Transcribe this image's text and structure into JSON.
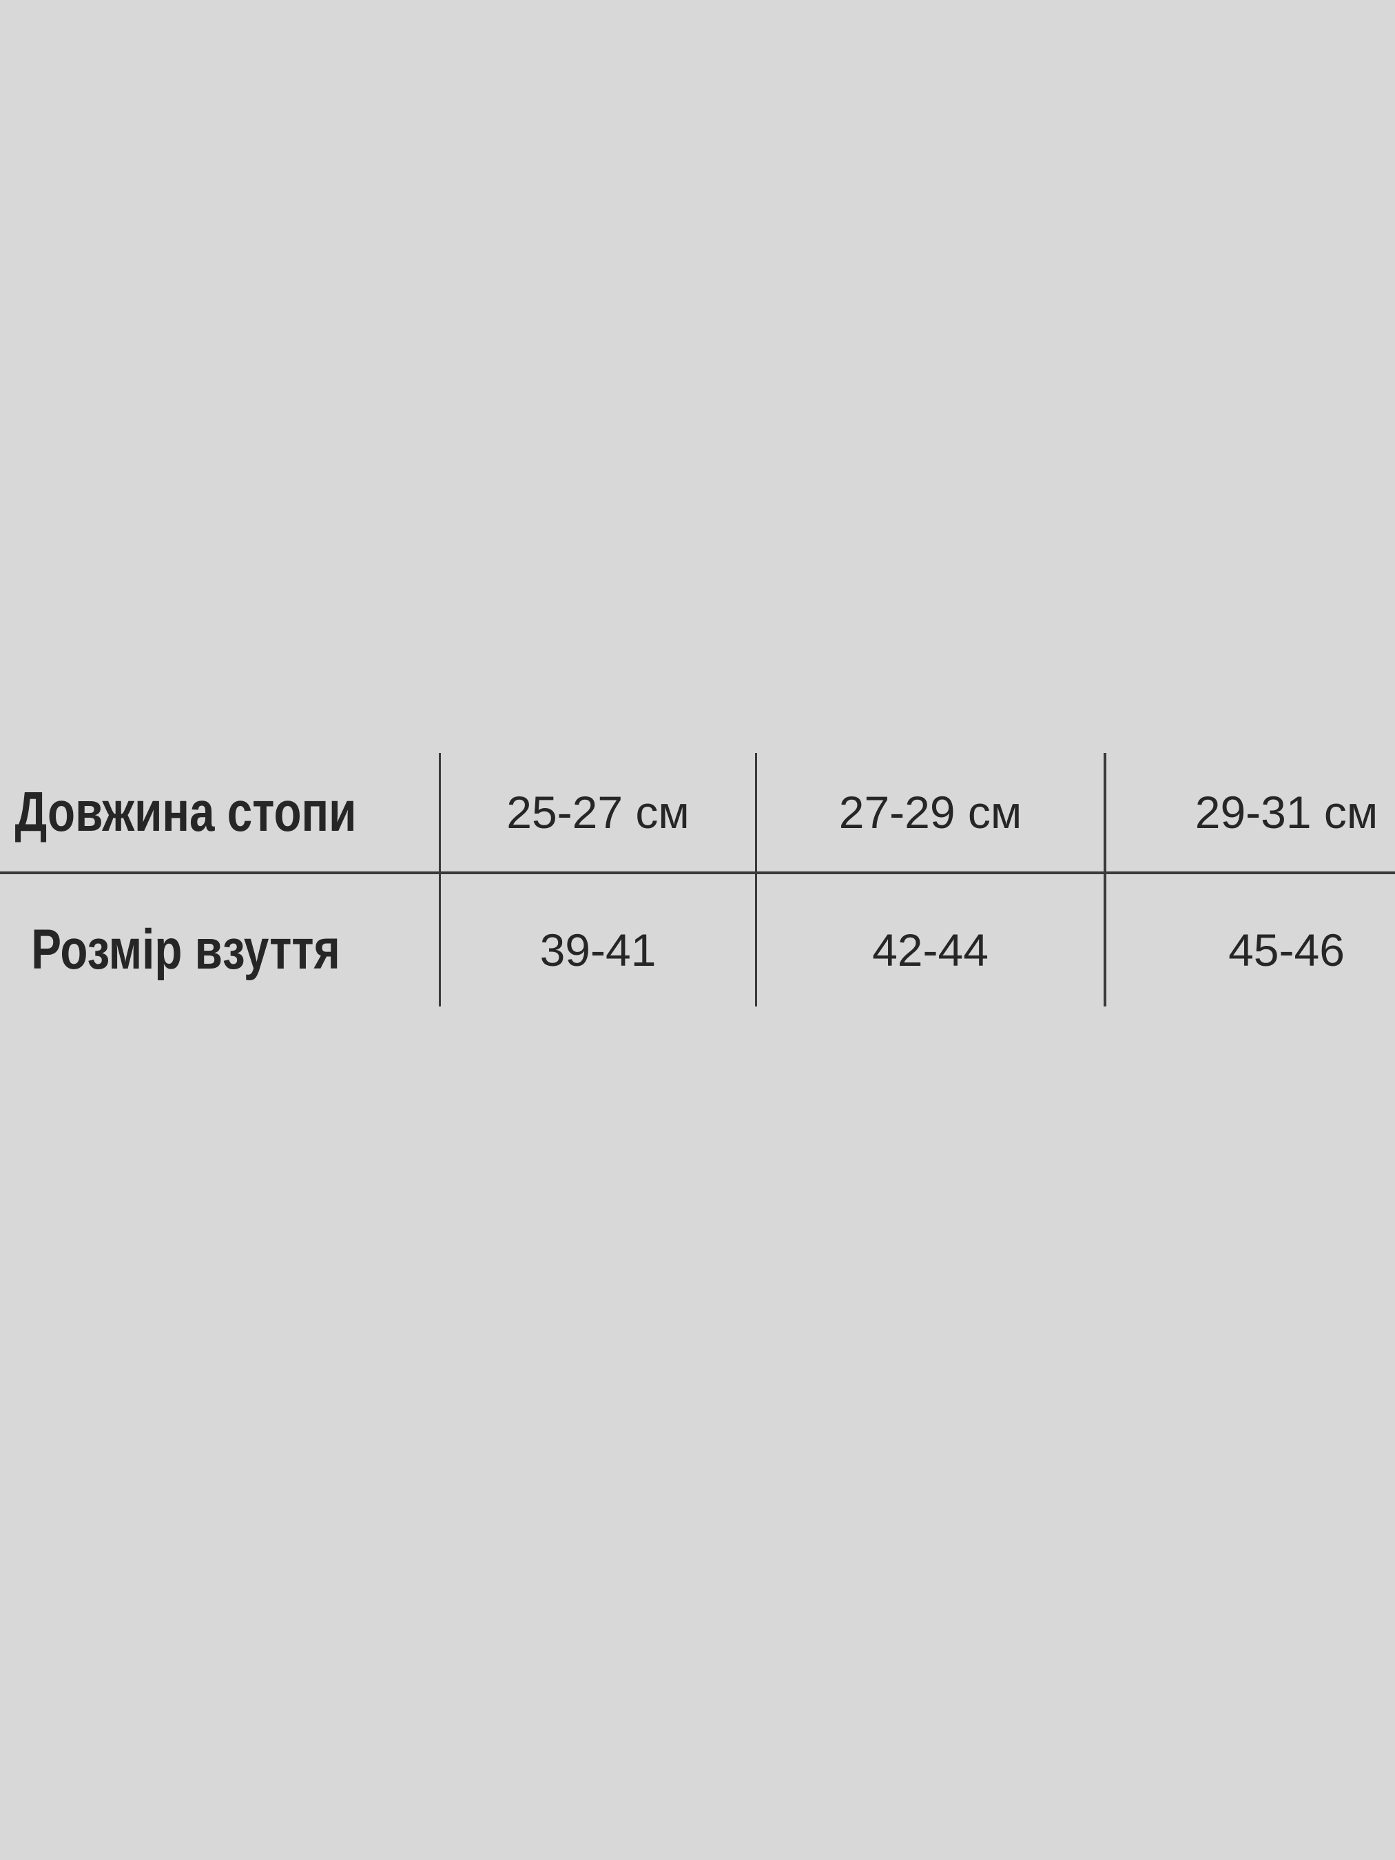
{
  "colors": {
    "background": "#d8d8d8",
    "line": "#3a3a3a",
    "text": "#262626"
  },
  "chart_data": {
    "type": "table",
    "title": "",
    "rows": [
      {
        "header": "Довжина стопи",
        "cells": [
          "25-27 см",
          "27-29 см",
          "29-31 см"
        ]
      },
      {
        "header": "Розмір взуття",
        "cells": [
          "39-41",
          "42-44",
          "45-46"
        ]
      }
    ],
    "layout": {
      "grid": "partial",
      "column_dividers": 3,
      "row_dividers": 1
    }
  }
}
